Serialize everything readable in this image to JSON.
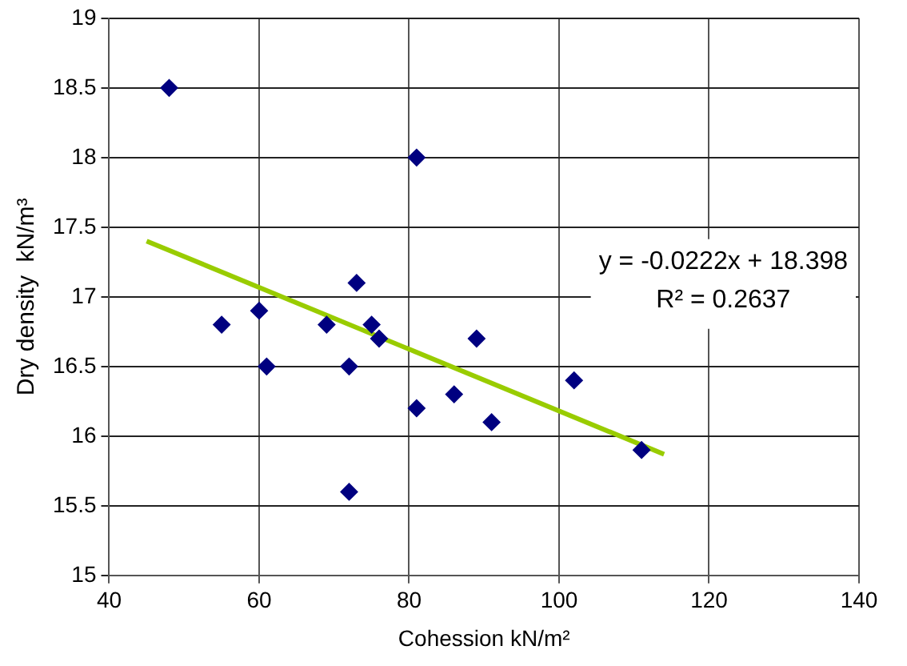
{
  "chart_data": {
    "type": "scatter",
    "xlabel": "Cohession kN/m²",
    "ylabel": "Dry density  kN/m³",
    "x": [
      48,
      55,
      60,
      61,
      69,
      72,
      72,
      73,
      75,
      76,
      81,
      81,
      86,
      89,
      91,
      102,
      111
    ],
    "series": [
      {
        "color": "#000080",
        "marker": "diamond",
        "values": [
          18.5,
          16.8,
          16.9,
          16.5,
          16.8,
          16.5,
          15.6,
          17.1,
          16.8,
          16.7,
          18.0,
          16.2,
          16.3,
          16.7,
          16.1,
          16.4,
          15.9
        ]
      },
      {
        "type": "line",
        "color": "#99cc00",
        "marker": "none",
        "x": [
          45,
          114
        ],
        "values": [
          17.4,
          15.87
        ]
      }
    ],
    "xlim": [
      40,
      140
    ],
    "xticks": [
      40,
      60,
      80,
      100,
      120,
      140
    ],
    "ylim": [
      15,
      19
    ],
    "yticks": [
      15,
      15.5,
      16,
      16.5,
      17,
      17.5,
      18,
      18.5,
      19
    ],
    "grid": true,
    "legend": false,
    "annotations": [
      "y = -0.0222x + 18.398",
      "R² = 0.2637"
    ]
  }
}
